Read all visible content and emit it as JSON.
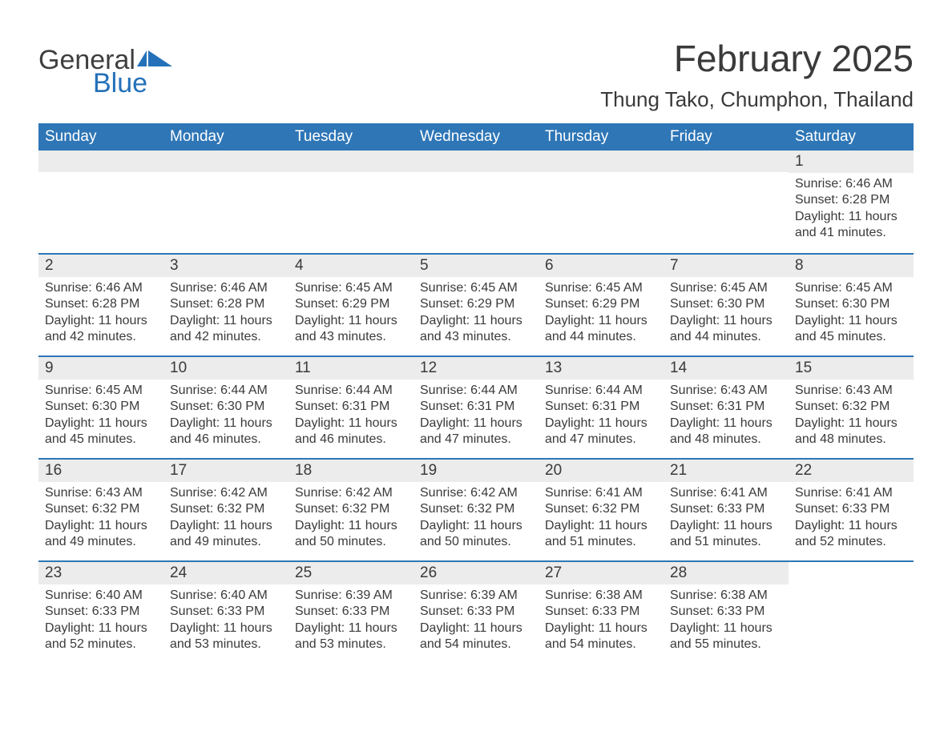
{
  "brand": {
    "word1": "General",
    "word2": "Blue",
    "flag_color": "#2471b9"
  },
  "title": "February 2025",
  "location": "Thung Tako, Chumphon, Thailand",
  "colors": {
    "header_bg": "#2e76b6",
    "header_text": "#ffffff",
    "band_bg": "#ececec",
    "rule": "#2e76b6",
    "body_text": "#3a3a3a",
    "page_bg": "#ffffff"
  },
  "day_headers": [
    "Sunday",
    "Monday",
    "Tuesday",
    "Wednesday",
    "Thursday",
    "Friday",
    "Saturday"
  ],
  "weeks": [
    [
      null,
      null,
      null,
      null,
      null,
      null,
      {
        "n": "1",
        "sunrise": "Sunrise: 6:46 AM",
        "sunset": "Sunset: 6:28 PM",
        "daylight": "Daylight: 11 hours and 41 minutes."
      }
    ],
    [
      {
        "n": "2",
        "sunrise": "Sunrise: 6:46 AM",
        "sunset": "Sunset: 6:28 PM",
        "daylight": "Daylight: 11 hours and 42 minutes."
      },
      {
        "n": "3",
        "sunrise": "Sunrise: 6:46 AM",
        "sunset": "Sunset: 6:28 PM",
        "daylight": "Daylight: 11 hours and 42 minutes."
      },
      {
        "n": "4",
        "sunrise": "Sunrise: 6:45 AM",
        "sunset": "Sunset: 6:29 PM",
        "daylight": "Daylight: 11 hours and 43 minutes."
      },
      {
        "n": "5",
        "sunrise": "Sunrise: 6:45 AM",
        "sunset": "Sunset: 6:29 PM",
        "daylight": "Daylight: 11 hours and 43 minutes."
      },
      {
        "n": "6",
        "sunrise": "Sunrise: 6:45 AM",
        "sunset": "Sunset: 6:29 PM",
        "daylight": "Daylight: 11 hours and 44 minutes."
      },
      {
        "n": "7",
        "sunrise": "Sunrise: 6:45 AM",
        "sunset": "Sunset: 6:30 PM",
        "daylight": "Daylight: 11 hours and 44 minutes."
      },
      {
        "n": "8",
        "sunrise": "Sunrise: 6:45 AM",
        "sunset": "Sunset: 6:30 PM",
        "daylight": "Daylight: 11 hours and 45 minutes."
      }
    ],
    [
      {
        "n": "9",
        "sunrise": "Sunrise: 6:45 AM",
        "sunset": "Sunset: 6:30 PM",
        "daylight": "Daylight: 11 hours and 45 minutes."
      },
      {
        "n": "10",
        "sunrise": "Sunrise: 6:44 AM",
        "sunset": "Sunset: 6:30 PM",
        "daylight": "Daylight: 11 hours and 46 minutes."
      },
      {
        "n": "11",
        "sunrise": "Sunrise: 6:44 AM",
        "sunset": "Sunset: 6:31 PM",
        "daylight": "Daylight: 11 hours and 46 minutes."
      },
      {
        "n": "12",
        "sunrise": "Sunrise: 6:44 AM",
        "sunset": "Sunset: 6:31 PM",
        "daylight": "Daylight: 11 hours and 47 minutes."
      },
      {
        "n": "13",
        "sunrise": "Sunrise: 6:44 AM",
        "sunset": "Sunset: 6:31 PM",
        "daylight": "Daylight: 11 hours and 47 minutes."
      },
      {
        "n": "14",
        "sunrise": "Sunrise: 6:43 AM",
        "sunset": "Sunset: 6:31 PM",
        "daylight": "Daylight: 11 hours and 48 minutes."
      },
      {
        "n": "15",
        "sunrise": "Sunrise: 6:43 AM",
        "sunset": "Sunset: 6:32 PM",
        "daylight": "Daylight: 11 hours and 48 minutes."
      }
    ],
    [
      {
        "n": "16",
        "sunrise": "Sunrise: 6:43 AM",
        "sunset": "Sunset: 6:32 PM",
        "daylight": "Daylight: 11 hours and 49 minutes."
      },
      {
        "n": "17",
        "sunrise": "Sunrise: 6:42 AM",
        "sunset": "Sunset: 6:32 PM",
        "daylight": "Daylight: 11 hours and 49 minutes."
      },
      {
        "n": "18",
        "sunrise": "Sunrise: 6:42 AM",
        "sunset": "Sunset: 6:32 PM",
        "daylight": "Daylight: 11 hours and 50 minutes."
      },
      {
        "n": "19",
        "sunrise": "Sunrise: 6:42 AM",
        "sunset": "Sunset: 6:32 PM",
        "daylight": "Daylight: 11 hours and 50 minutes."
      },
      {
        "n": "20",
        "sunrise": "Sunrise: 6:41 AM",
        "sunset": "Sunset: 6:32 PM",
        "daylight": "Daylight: 11 hours and 51 minutes."
      },
      {
        "n": "21",
        "sunrise": "Sunrise: 6:41 AM",
        "sunset": "Sunset: 6:33 PM",
        "daylight": "Daylight: 11 hours and 51 minutes."
      },
      {
        "n": "22",
        "sunrise": "Sunrise: 6:41 AM",
        "sunset": "Sunset: 6:33 PM",
        "daylight": "Daylight: 11 hours and 52 minutes."
      }
    ],
    [
      {
        "n": "23",
        "sunrise": "Sunrise: 6:40 AM",
        "sunset": "Sunset: 6:33 PM",
        "daylight": "Daylight: 11 hours and 52 minutes."
      },
      {
        "n": "24",
        "sunrise": "Sunrise: 6:40 AM",
        "sunset": "Sunset: 6:33 PM",
        "daylight": "Daylight: 11 hours and 53 minutes."
      },
      {
        "n": "25",
        "sunrise": "Sunrise: 6:39 AM",
        "sunset": "Sunset: 6:33 PM",
        "daylight": "Daylight: 11 hours and 53 minutes."
      },
      {
        "n": "26",
        "sunrise": "Sunrise: 6:39 AM",
        "sunset": "Sunset: 6:33 PM",
        "daylight": "Daylight: 11 hours and 54 minutes."
      },
      {
        "n": "27",
        "sunrise": "Sunrise: 6:38 AM",
        "sunset": "Sunset: 6:33 PM",
        "daylight": "Daylight: 11 hours and 54 minutes."
      },
      {
        "n": "28",
        "sunrise": "Sunrise: 6:38 AM",
        "sunset": "Sunset: 6:33 PM",
        "daylight": "Daylight: 11 hours and 55 minutes."
      },
      null
    ]
  ]
}
